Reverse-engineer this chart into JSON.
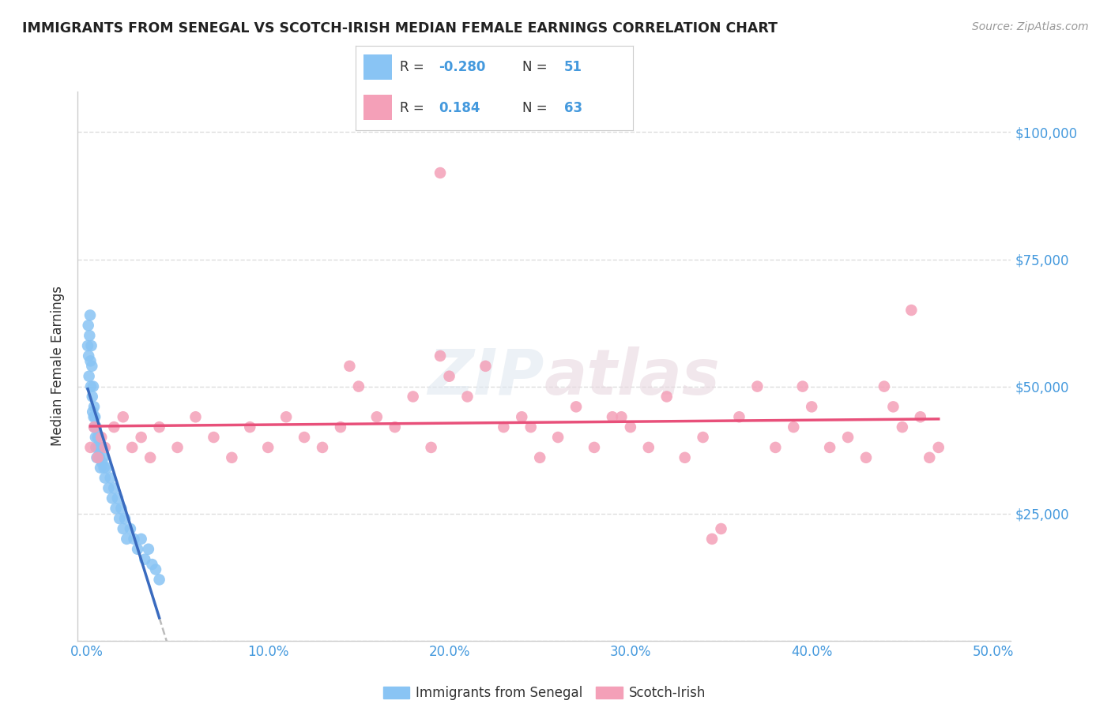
{
  "title": "IMMIGRANTS FROM SENEGAL VS SCOTCH-IRISH MEDIAN FEMALE EARNINGS CORRELATION CHART",
  "source": "Source: ZipAtlas.com",
  "ylabel": "Median Female Earnings",
  "xlabel_ticks": [
    "0.0%",
    "10.0%",
    "20.0%",
    "30.0%",
    "40.0%",
    "50.0%"
  ],
  "xlabel_vals": [
    0.0,
    10.0,
    20.0,
    30.0,
    40.0,
    50.0
  ],
  "ylabel_ticks": [
    0,
    25000,
    50000,
    75000,
    100000
  ],
  "ylabel_labels": [
    "",
    "$25,000",
    "$50,000",
    "$75,000",
    "$100,000"
  ],
  "ylim": [
    0,
    108000
  ],
  "xlim": [
    -0.5,
    51
  ],
  "r_senegal": -0.28,
  "n_senegal": 51,
  "r_scotch": 0.184,
  "n_scotch": 63,
  "color_senegal": "#89C4F4",
  "color_scotch": "#F4A0B8",
  "line_color_senegal": "#3A6BBF",
  "line_color_scotch": "#E8507A",
  "line_color_dashed": "#BBBBBB",
  "background_color": "#FFFFFF",
  "grid_color": "#DDDDDD",
  "title_color": "#222222",
  "axis_label_color": "#333333",
  "tick_color_x": "#4499DD",
  "tick_color_y": "#4499DD",
  "legend_label1": "Immigrants from Senegal",
  "legend_label2": "Scotch-Irish",
  "senegal_x": [
    0.05,
    0.08,
    0.1,
    0.12,
    0.15,
    0.18,
    0.2,
    0.22,
    0.25,
    0.28,
    0.3,
    0.32,
    0.35,
    0.38,
    0.4,
    0.42,
    0.45,
    0.48,
    0.5,
    0.52,
    0.55,
    0.6,
    0.65,
    0.7,
    0.75,
    0.8,
    0.85,
    0.9,
    0.95,
    1.0,
    1.1,
    1.2,
    1.3,
    1.4,
    1.5,
    1.6,
    1.7,
    1.8,
    1.9,
    2.0,
    2.1,
    2.2,
    2.4,
    2.6,
    2.8,
    3.0,
    3.2,
    3.4,
    3.6,
    3.8,
    4.0
  ],
  "senegal_y": [
    58000,
    62000,
    56000,
    52000,
    60000,
    64000,
    55000,
    50000,
    58000,
    54000,
    48000,
    45000,
    50000,
    44000,
    46000,
    42000,
    44000,
    40000,
    38000,
    42000,
    36000,
    40000,
    38000,
    36000,
    34000,
    38000,
    35000,
    36000,
    34000,
    32000,
    34000,
    30000,
    32000,
    28000,
    30000,
    26000,
    28000,
    24000,
    26000,
    22000,
    24000,
    20000,
    22000,
    20000,
    18000,
    20000,
    16000,
    18000,
    15000,
    14000,
    12000
  ],
  "scotch_x": [
    0.2,
    0.4,
    0.6,
    0.8,
    1.0,
    1.5,
    2.0,
    2.5,
    3.0,
    3.5,
    4.0,
    5.0,
    6.0,
    7.0,
    8.0,
    9.0,
    10.0,
    11.0,
    12.0,
    13.0,
    14.0,
    15.0,
    16.0,
    17.0,
    18.0,
    19.0,
    20.0,
    21.0,
    22.0,
    23.0,
    24.0,
    25.0,
    26.0,
    27.0,
    28.0,
    29.0,
    30.0,
    31.0,
    32.0,
    33.0,
    34.0,
    35.0,
    36.0,
    37.0,
    38.0,
    39.0,
    40.0,
    41.0,
    42.0,
    43.0,
    44.0,
    45.0,
    46.0,
    47.0,
    14.5,
    19.5,
    24.5,
    29.5,
    34.5,
    39.5,
    44.5,
    45.5,
    46.5
  ],
  "scotch_y": [
    38000,
    42000,
    36000,
    40000,
    38000,
    42000,
    44000,
    38000,
    40000,
    36000,
    42000,
    38000,
    44000,
    40000,
    36000,
    42000,
    38000,
    44000,
    40000,
    38000,
    42000,
    50000,
    44000,
    42000,
    48000,
    38000,
    52000,
    48000,
    54000,
    42000,
    44000,
    36000,
    40000,
    46000,
    38000,
    44000,
    42000,
    38000,
    48000,
    36000,
    40000,
    22000,
    44000,
    50000,
    38000,
    42000,
    46000,
    38000,
    40000,
    36000,
    50000,
    42000,
    44000,
    38000,
    54000,
    56000,
    42000,
    44000,
    20000,
    50000,
    46000,
    65000,
    36000
  ],
  "scotch_outlier_x": 19.5,
  "scotch_outlier_y": 92000,
  "senegal_trendline_x0": 0.05,
  "senegal_trendline_x1": 4.0,
  "scotch_trendline_x0": 0.2,
  "scotch_trendline_x1": 47.0,
  "dashed_x0": 4.0,
  "dashed_x1": 49.0
}
